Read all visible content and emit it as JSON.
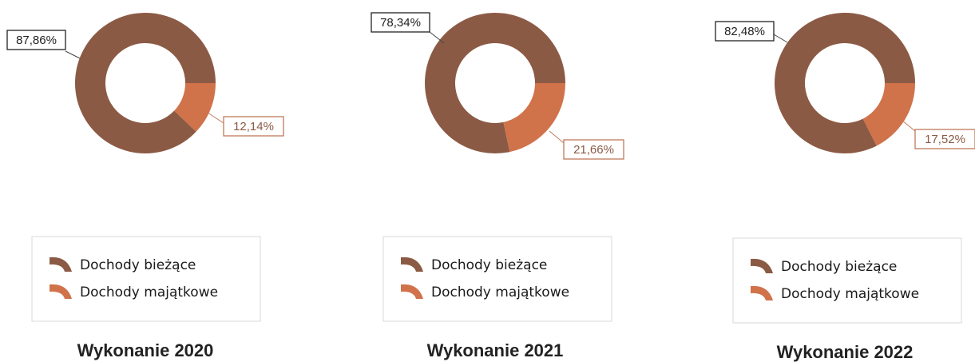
{
  "colors": {
    "current": "#8B5A45",
    "capital": "#D0724A",
    "label_dark": "#222222",
    "label_capital_text": "#8B5A45",
    "label_capital_border": "#C07A5A"
  },
  "chart_data": [
    {
      "type": "pie",
      "title": "Wykonanie 2020",
      "series": [
        {
          "name": "Dochody bieżące",
          "value": 87.86,
          "label": "87,86%"
        },
        {
          "name": "Dochody majątkowe",
          "value": 12.14,
          "label": "12,14%"
        }
      ],
      "legend": [
        "Dochody bieżące",
        "Dochody majątkowe"
      ],
      "legend_position": "bottom"
    },
    {
      "type": "pie",
      "title": "Wykonanie 2021",
      "series": [
        {
          "name": "Dochody bieżące",
          "value": 78.34,
          "label": "78,34%"
        },
        {
          "name": "Dochody majątkowe",
          "value": 21.66,
          "label": "21,66%"
        }
      ],
      "legend": [
        "Dochody bieżące",
        "Dochody majątkowe"
      ],
      "legend_position": "bottom"
    },
    {
      "type": "pie",
      "title": "Wykonanie 2022",
      "series": [
        {
          "name": "Dochody bieżące",
          "value": 82.48,
          "label": "82,48%"
        },
        {
          "name": "Dochody majątkowe",
          "value": 17.52,
          "label": "17,52%"
        }
      ],
      "legend": [
        "Dochody bieżące",
        "Dochody majątkowe"
      ],
      "legend_position": "bottom"
    }
  ]
}
